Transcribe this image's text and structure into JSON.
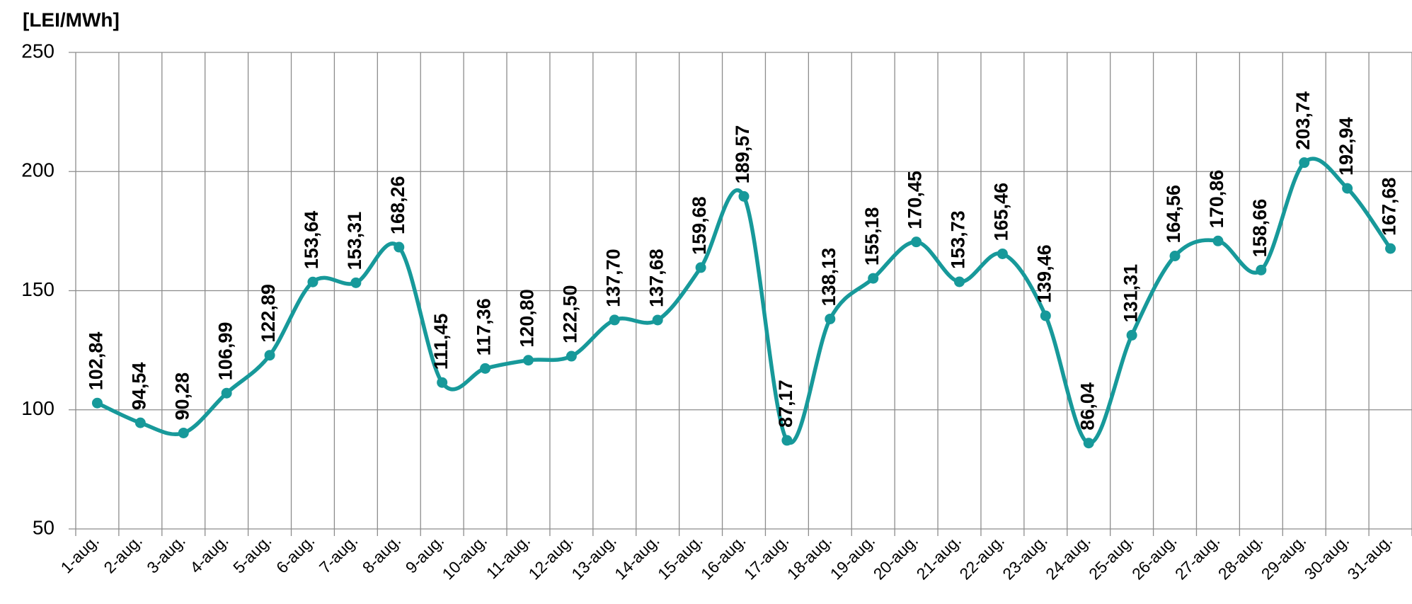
{
  "chart_data": {
    "type": "line",
    "y_label": "[LEI/MWh]",
    "categories": [
      "1-aug.",
      "2-aug.",
      "3-aug.",
      "4-aug.",
      "5-aug.",
      "6-aug.",
      "7-aug.",
      "8-aug.",
      "9-aug.",
      "10-aug.",
      "11-aug.",
      "12-aug.",
      "13-aug.",
      "14-aug.",
      "15-aug.",
      "16-aug.",
      "17-aug.",
      "18-aug.",
      "19-aug.",
      "20-aug.",
      "21-aug.",
      "22-aug.",
      "23-aug.",
      "24-aug.",
      "25-aug.",
      "26-aug.",
      "27-aug.",
      "28-aug.",
      "29-aug.",
      "30-aug.",
      "31-aug."
    ],
    "values": [
      102.84,
      94.54,
      90.28,
      106.99,
      122.89,
      153.64,
      153.31,
      168.26,
      111.45,
      117.36,
      120.8,
      122.5,
      137.7,
      137.68,
      159.68,
      189.57,
      87.17,
      138.13,
      155.18,
      170.45,
      153.73,
      165.46,
      139.46,
      86.04,
      131.31,
      164.56,
      170.86,
      158.66,
      203.74,
      192.94,
      167.68
    ],
    "value_labels": [
      "102,84",
      "94,54",
      "90,28",
      "106,99",
      "122,89",
      "153,64",
      "153,31",
      "168,26",
      "111,45",
      "117,36",
      "120,80",
      "122,50",
      "137,70",
      "137,68",
      "159,68",
      "189,57",
      "87,17",
      "138,13",
      "155,18",
      "170,45",
      "153,73",
      "165,46",
      "139,46",
      "86,04",
      "131,31",
      "164,56",
      "170,86",
      "158,66",
      "203,74",
      "192,94",
      "167,68"
    ],
    "color": "#17999a",
    "ylim": [
      50,
      250
    ],
    "yticks": [
      50,
      100,
      150,
      200,
      250
    ],
    "grid": true
  }
}
